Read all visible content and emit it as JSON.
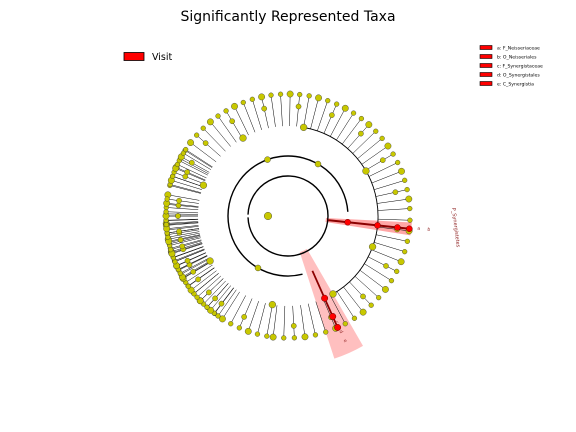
{
  "chart_data": {
    "type": "cladogram",
    "title": "Significantly Represented Taxa",
    "legend_groups": [
      {
        "label": "Visit",
        "color": "#ff0000"
      }
    ],
    "highlight_color": "#ff0000",
    "node_color": "#c8c800",
    "clade_legend": [
      {
        "letter": "a",
        "label": "a: F_Neisseriaceae",
        "color": "#ff0000"
      },
      {
        "letter": "b",
        "label": "b: O_Neisseriales",
        "color": "#ff0000"
      },
      {
        "letter": "c",
        "label": "c: F_Synergistaceae",
        "color": "#ff0000"
      },
      {
        "letter": "d",
        "label": "d: O_Synergistales",
        "color": "#ff0000"
      },
      {
        "letter": "e",
        "label": "e: C_Synergistia",
        "color": "#ff0000"
      }
    ],
    "phylum_label": "P_Synergistetes",
    "branch_a_letters": [
      "a",
      "b"
    ],
    "branch_b_letters": [
      "c",
      "d",
      "e"
    ]
  }
}
